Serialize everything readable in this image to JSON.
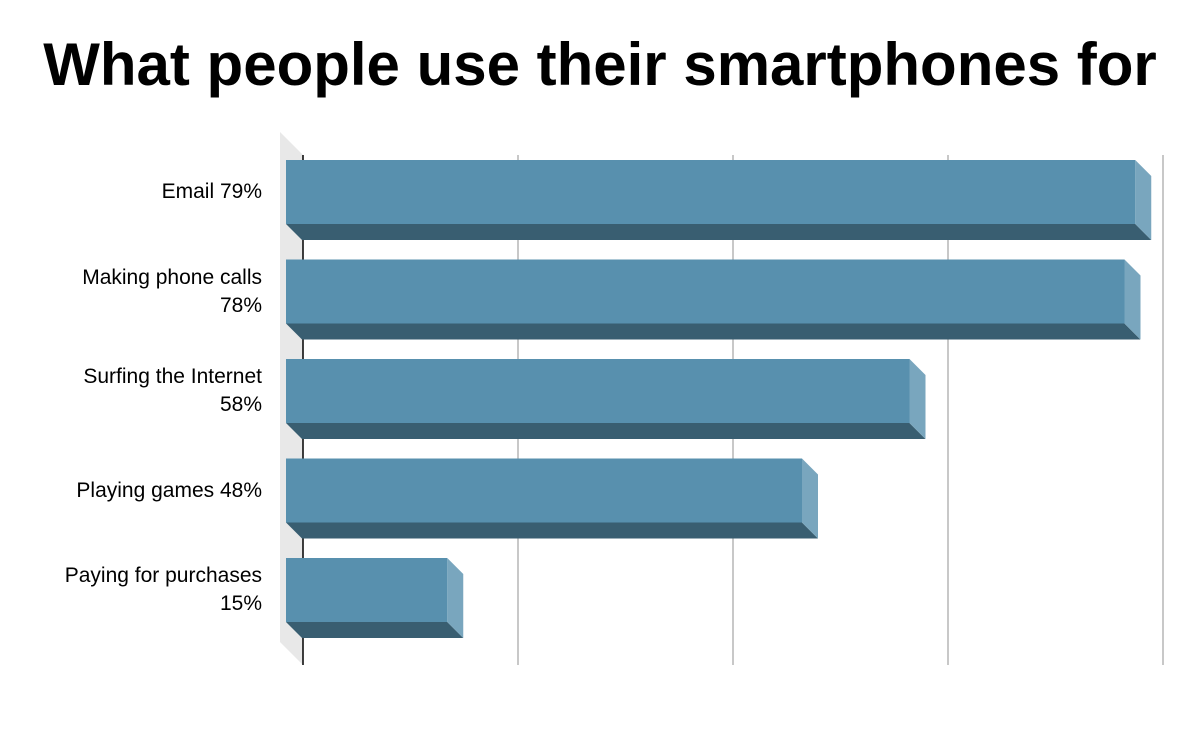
{
  "chart_data": {
    "type": "bar3d_horizontal",
    "title": "What people use their smartphones for",
    "categories": [
      "Email 79%",
      "Making phone calls 78%",
      "Surfing the Internet 58%",
      "Playing games 48%",
      "Paying for purchases 15%"
    ],
    "values": [
      79,
      78,
      58,
      48,
      15
    ],
    "color": "#5890ae",
    "xlim": [
      0,
      80
    ],
    "xticks": [
      0,
      20,
      40,
      60,
      80
    ],
    "grid": true,
    "tick_labels": false
  }
}
